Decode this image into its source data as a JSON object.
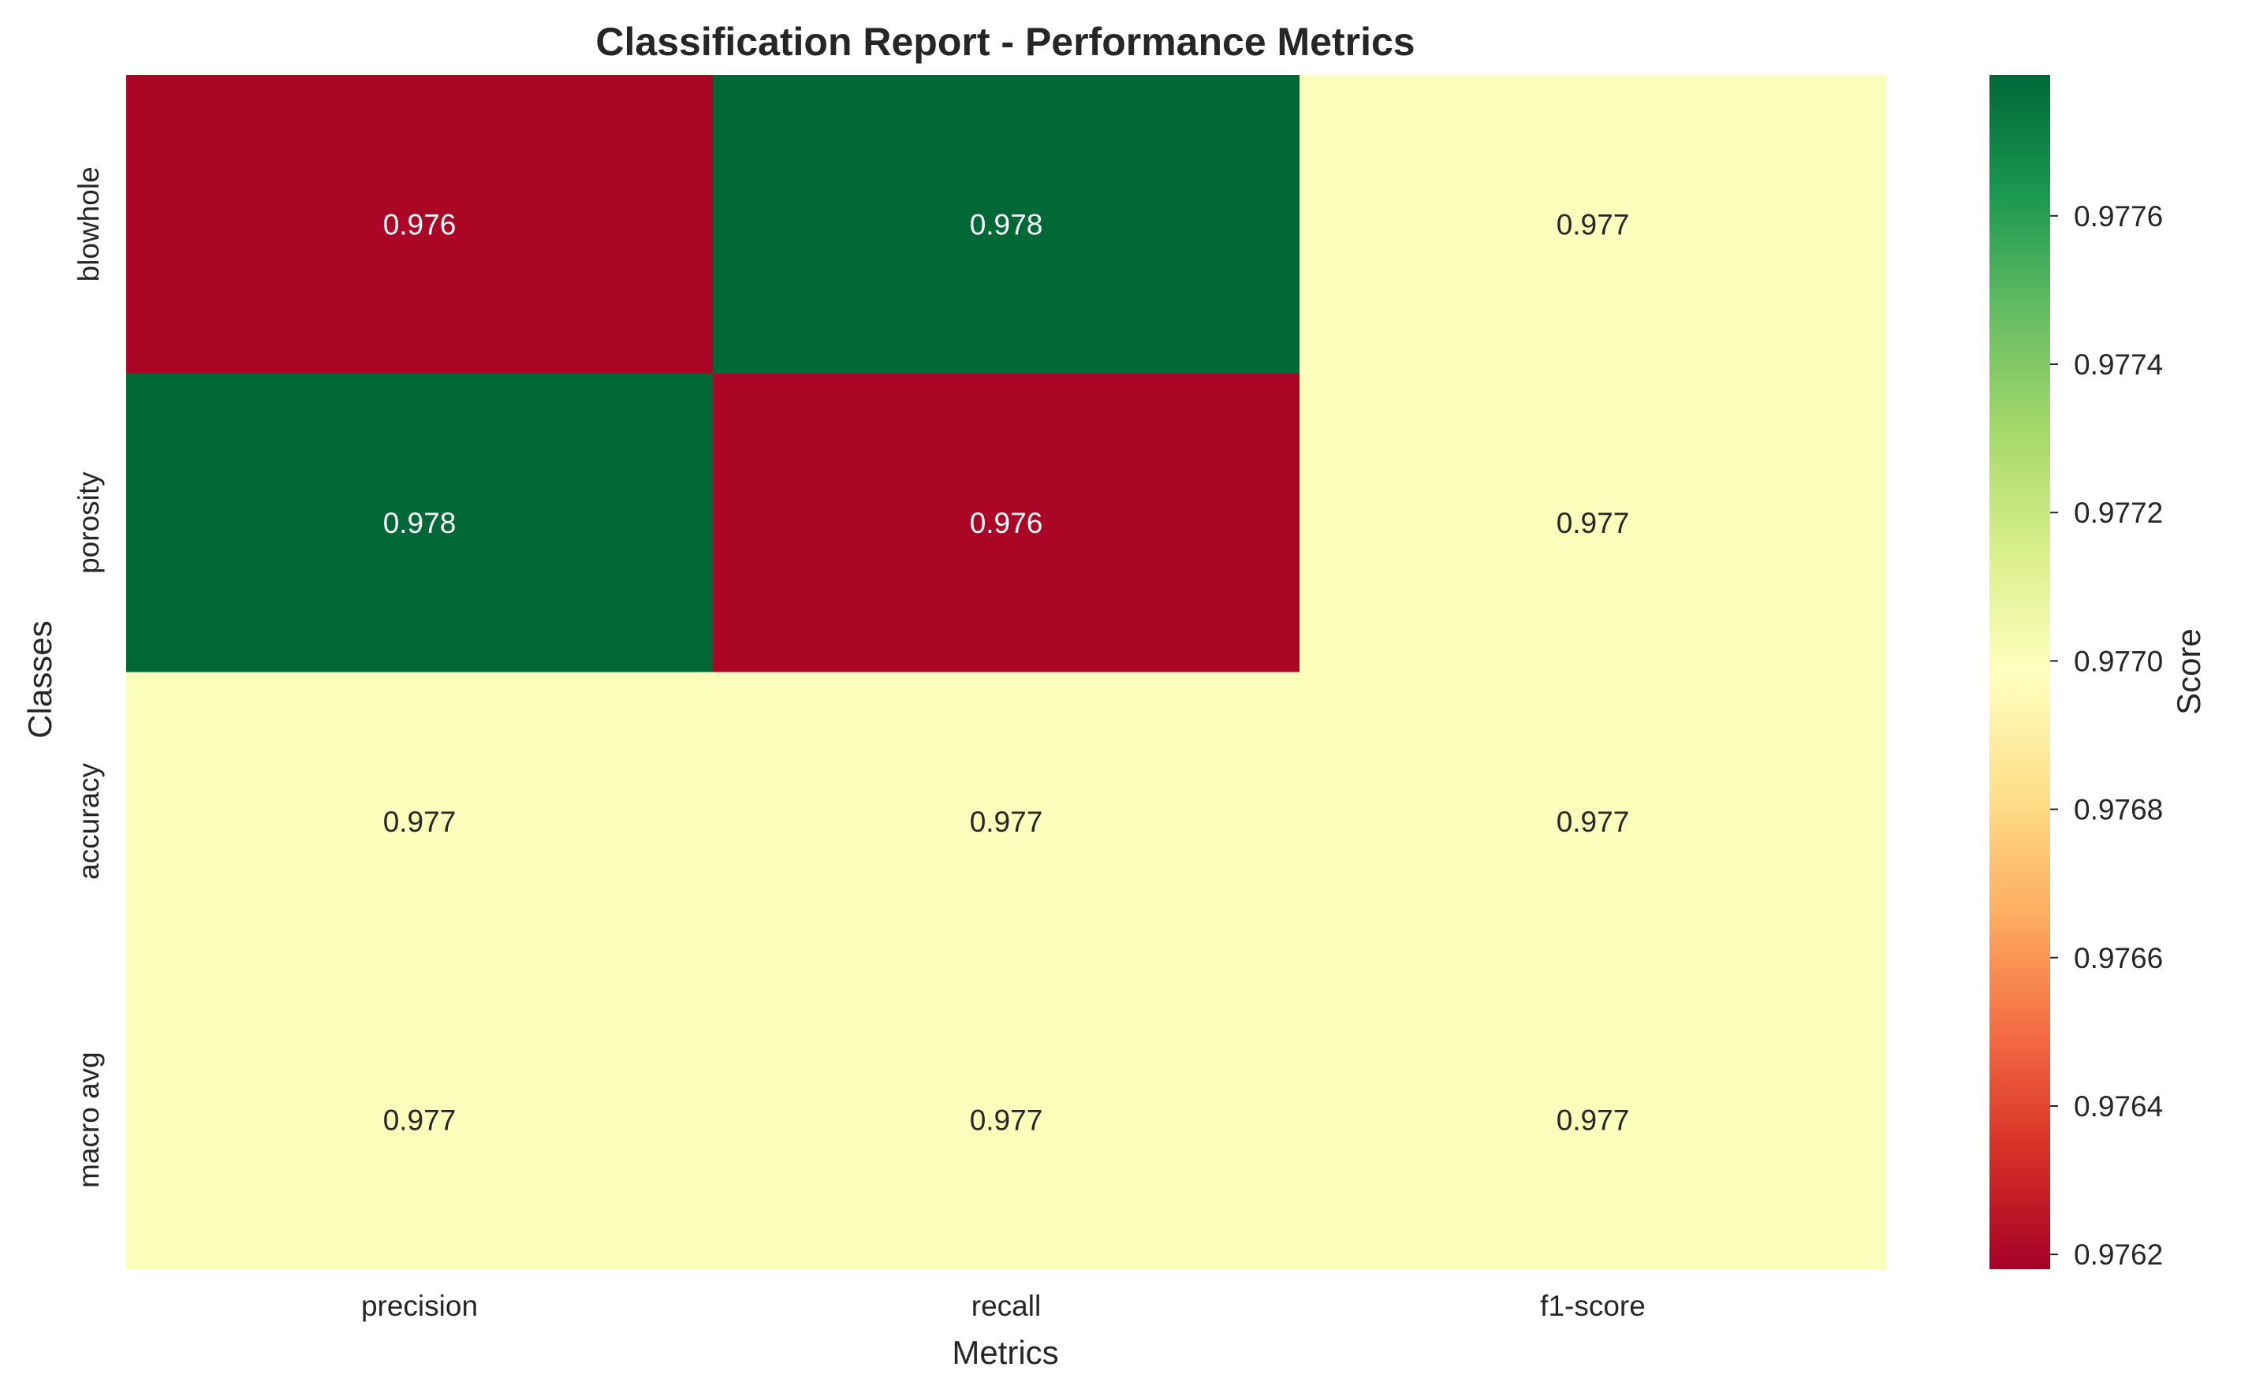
{
  "chart_data": {
    "type": "heatmap",
    "title": "Classification Report - Performance Metrics",
    "xlabel": "Metrics",
    "ylabel": "Classes",
    "x_categories": [
      "precision",
      "recall",
      "f1-score"
    ],
    "y_categories": [
      "blowhole",
      "porosity",
      "accuracy",
      "macro avg"
    ],
    "values": [
      [
        0.9762,
        0.9778,
        0.977
      ],
      [
        0.9778,
        0.9762,
        0.977
      ],
      [
        0.977,
        0.977,
        0.977
      ],
      [
        0.977,
        0.977,
        0.977
      ]
    ],
    "cell_labels": [
      [
        "0.976",
        "0.978",
        "0.977"
      ],
      [
        "0.978",
        "0.976",
        "0.977"
      ],
      [
        "0.977",
        "0.977",
        "0.977"
      ],
      [
        "0.977",
        "0.977",
        "0.977"
      ]
    ],
    "colormap": "RdYlGn",
    "colorbar": {
      "label": "Score",
      "range": [
        0.97618,
        0.97779
      ],
      "ticks": [
        0.9762,
        0.9764,
        0.9766,
        0.9768,
        0.977,
        0.9772,
        0.9774,
        0.9776
      ],
      "tick_labels": [
        "0.9762",
        "0.9764",
        "0.9766",
        "0.9768",
        "0.9770",
        "0.9772",
        "0.9774",
        "0.9776"
      ]
    },
    "colors": {
      "text_dark": "#262626",
      "text_light": "#ffffff",
      "background": "#ffffff"
    }
  }
}
